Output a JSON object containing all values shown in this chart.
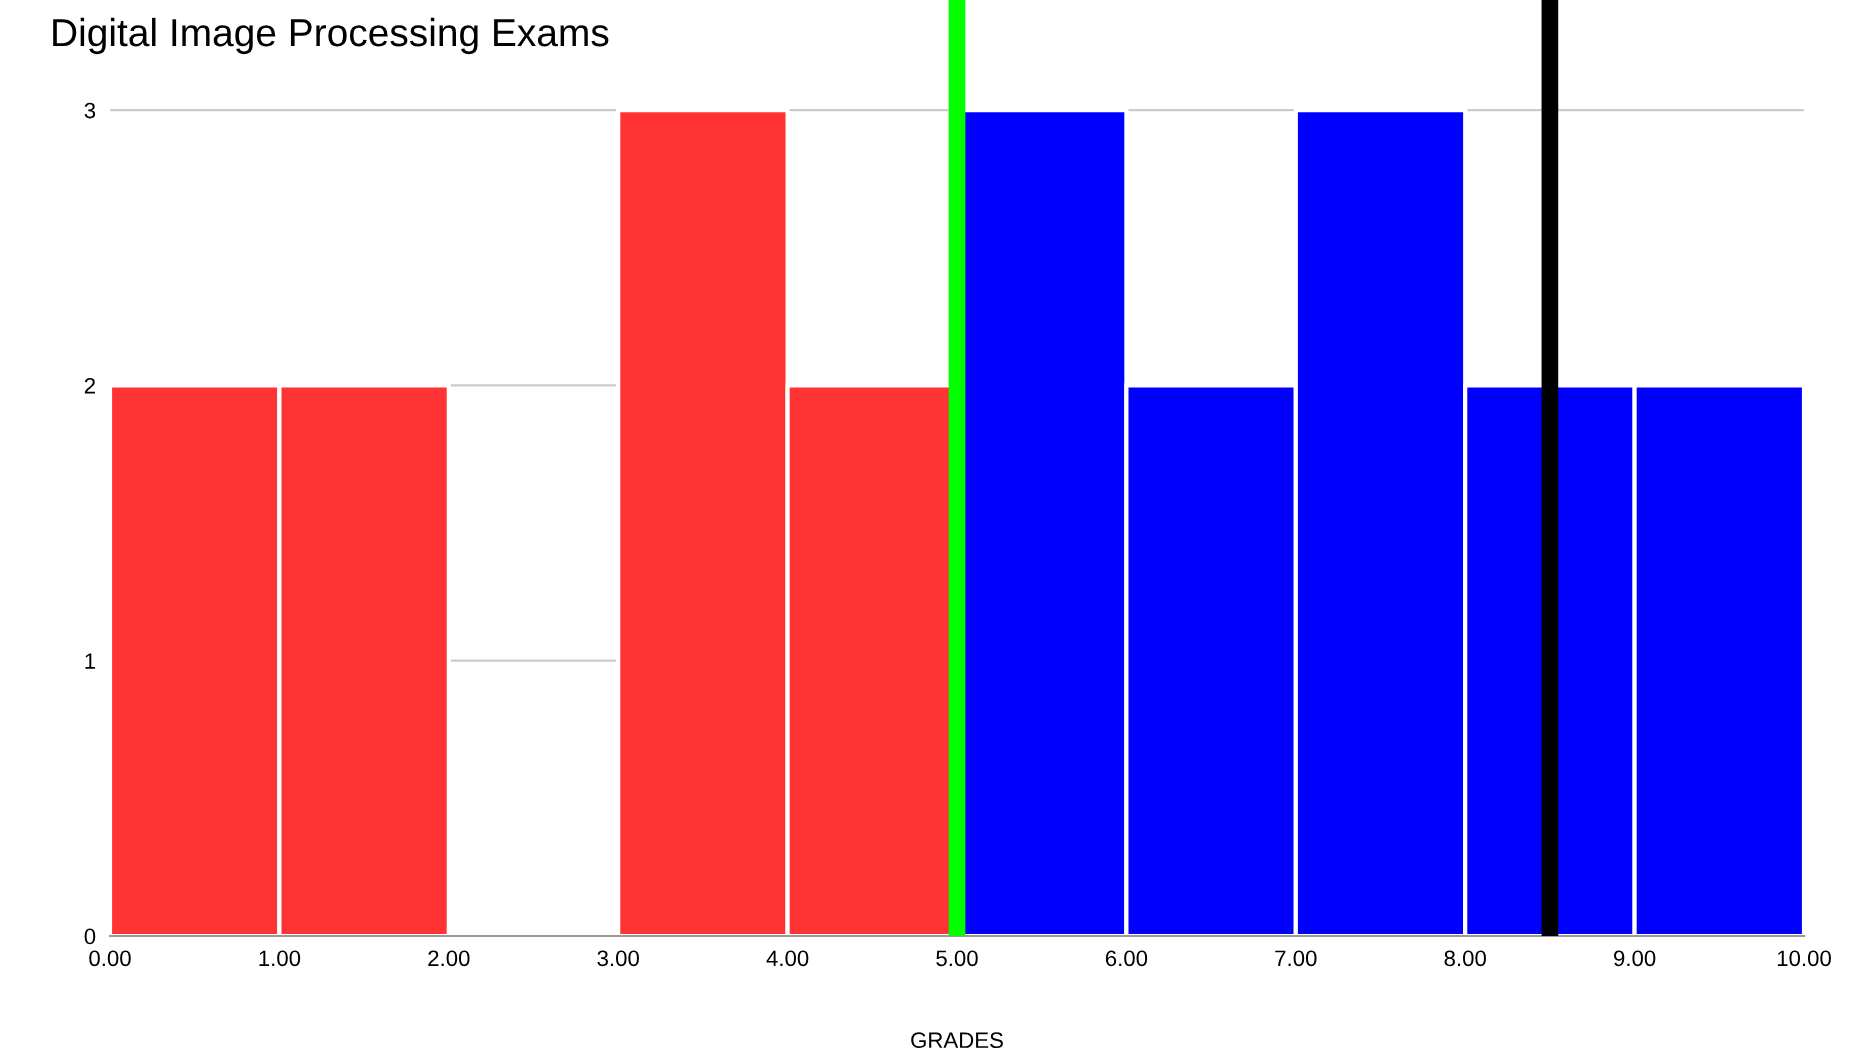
{
  "chart_data": {
    "type": "histogram",
    "title": "Digital Image Processing Exams",
    "xlabel": "GRADES",
    "bins": [
      0,
      1,
      2,
      3,
      4,
      5,
      6,
      7,
      8,
      9,
      10
    ],
    "values": [
      2,
      2,
      0,
      3,
      2,
      3,
      2,
      3,
      2,
      2
    ],
    "colors": [
      "#ff3333",
      "#ff3333",
      "#ff3333",
      "#ff3333",
      "#ff3333",
      "#0000ff",
      "#0000ff",
      "#0000ff",
      "#0000ff",
      "#0000ff"
    ],
    "xlim": [
      0,
      10
    ],
    "xticks": [
      {
        "value": 0,
        "label": "0.00"
      },
      {
        "value": 1,
        "label": "1.00"
      },
      {
        "value": 2,
        "label": "2.00"
      },
      {
        "value": 3,
        "label": "3.00"
      },
      {
        "value": 4,
        "label": "4.00"
      },
      {
        "value": 5,
        "label": "5.00"
      },
      {
        "value": 6,
        "label": "6.00"
      },
      {
        "value": 7,
        "label": "7.00"
      },
      {
        "value": 8,
        "label": "8.00"
      },
      {
        "value": 9,
        "label": "9.00"
      },
      {
        "value": 10,
        "label": "10.00"
      }
    ],
    "ylim": [
      0,
      3.4
    ],
    "yticks": [
      0,
      1,
      2,
      3
    ],
    "grid": "y",
    "ref_lines": [
      {
        "axis": "x",
        "value": 5,
        "color": "#00ff00"
      },
      {
        "axis": "x",
        "value": 8.5,
        "color": "#000000"
      }
    ]
  }
}
